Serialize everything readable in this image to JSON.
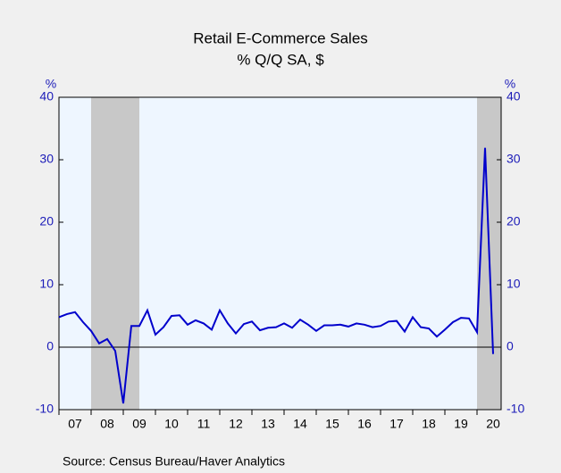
{
  "chart_data": {
    "type": "line",
    "title": "Retail E-Commerce Sales",
    "subtitle": "% Q/Q   SA, $",
    "y_label": "%",
    "y2_label": "%",
    "source": "Source:  Census Bureau/Haver Analytics",
    "x": [
      2007,
      2007.25,
      2007.5,
      2007.75,
      2008,
      2008.25,
      2008.5,
      2008.75,
      2009,
      2009.25,
      2009.5,
      2009.75,
      2010,
      2010.25,
      2010.5,
      2010.75,
      2011,
      2011.25,
      2011.5,
      2011.75,
      2012,
      2012.25,
      2012.5,
      2012.75,
      2013,
      2013.25,
      2013.5,
      2013.75,
      2014,
      2014.25,
      2014.5,
      2014.75,
      2015,
      2015.25,
      2015.5,
      2015.75,
      2016,
      2016.25,
      2016.5,
      2016.75,
      2017,
      2017.25,
      2017.5,
      2017.75,
      2018,
      2018.25,
      2018.5,
      2018.75,
      2019,
      2019.25,
      2019.5,
      2019.75,
      2020,
      2020.25,
      2020.5
    ],
    "series": [
      {
        "name": "Retail E-Commerce Sales",
        "color": "#0000cc",
        "values": [
          4.8,
          5.3,
          5.6,
          4.0,
          2.6,
          0.6,
          1.3,
          -0.6,
          -9.0,
          3.4,
          3.4,
          5.9,
          2.0,
          3.2,
          5.0,
          5.1,
          3.6,
          4.3,
          3.8,
          2.8,
          5.9,
          3.8,
          2.2,
          3.7,
          4.1,
          2.7,
          3.1,
          3.2,
          3.8,
          3.1,
          4.4,
          3.6,
          2.6,
          3.5,
          3.5,
          3.6,
          3.3,
          3.8,
          3.6,
          3.2,
          3.4,
          4.1,
          4.2,
          2.5,
          4.8,
          3.2,
          3.0,
          1.7,
          2.8,
          4.0,
          4.7,
          4.6,
          2.4,
          31.9,
          -1.1
        ]
      }
    ],
    "recessions": [
      [
        2008,
        2009.5
      ],
      [
        2020,
        2020.75
      ]
    ],
    "xlim": [
      2007,
      2020.75
    ],
    "xticks": [
      {
        "value": 2007.5,
        "label": "07"
      },
      {
        "value": 2008.5,
        "label": "08"
      },
      {
        "value": 2009.5,
        "label": "09"
      },
      {
        "value": 2010.5,
        "label": "10"
      },
      {
        "value": 2011.5,
        "label": "11"
      },
      {
        "value": 2012.5,
        "label": "12"
      },
      {
        "value": 2013.5,
        "label": "13"
      },
      {
        "value": 2014.5,
        "label": "14"
      },
      {
        "value": 2015.5,
        "label": "15"
      },
      {
        "value": 2016.5,
        "label": "16"
      },
      {
        "value": 2017.5,
        "label": "17"
      },
      {
        "value": 2018.5,
        "label": "18"
      },
      {
        "value": 2019.5,
        "label": "19"
      },
      {
        "value": 2020.5,
        "label": "20"
      }
    ],
    "ylim": [
      -10,
      40
    ],
    "yticks": [
      -10,
      0,
      10,
      20,
      30,
      40
    ],
    "y2lim": [
      -10,
      40
    ],
    "y2ticks": [
      -10,
      0,
      10,
      20,
      30,
      40
    ]
  }
}
